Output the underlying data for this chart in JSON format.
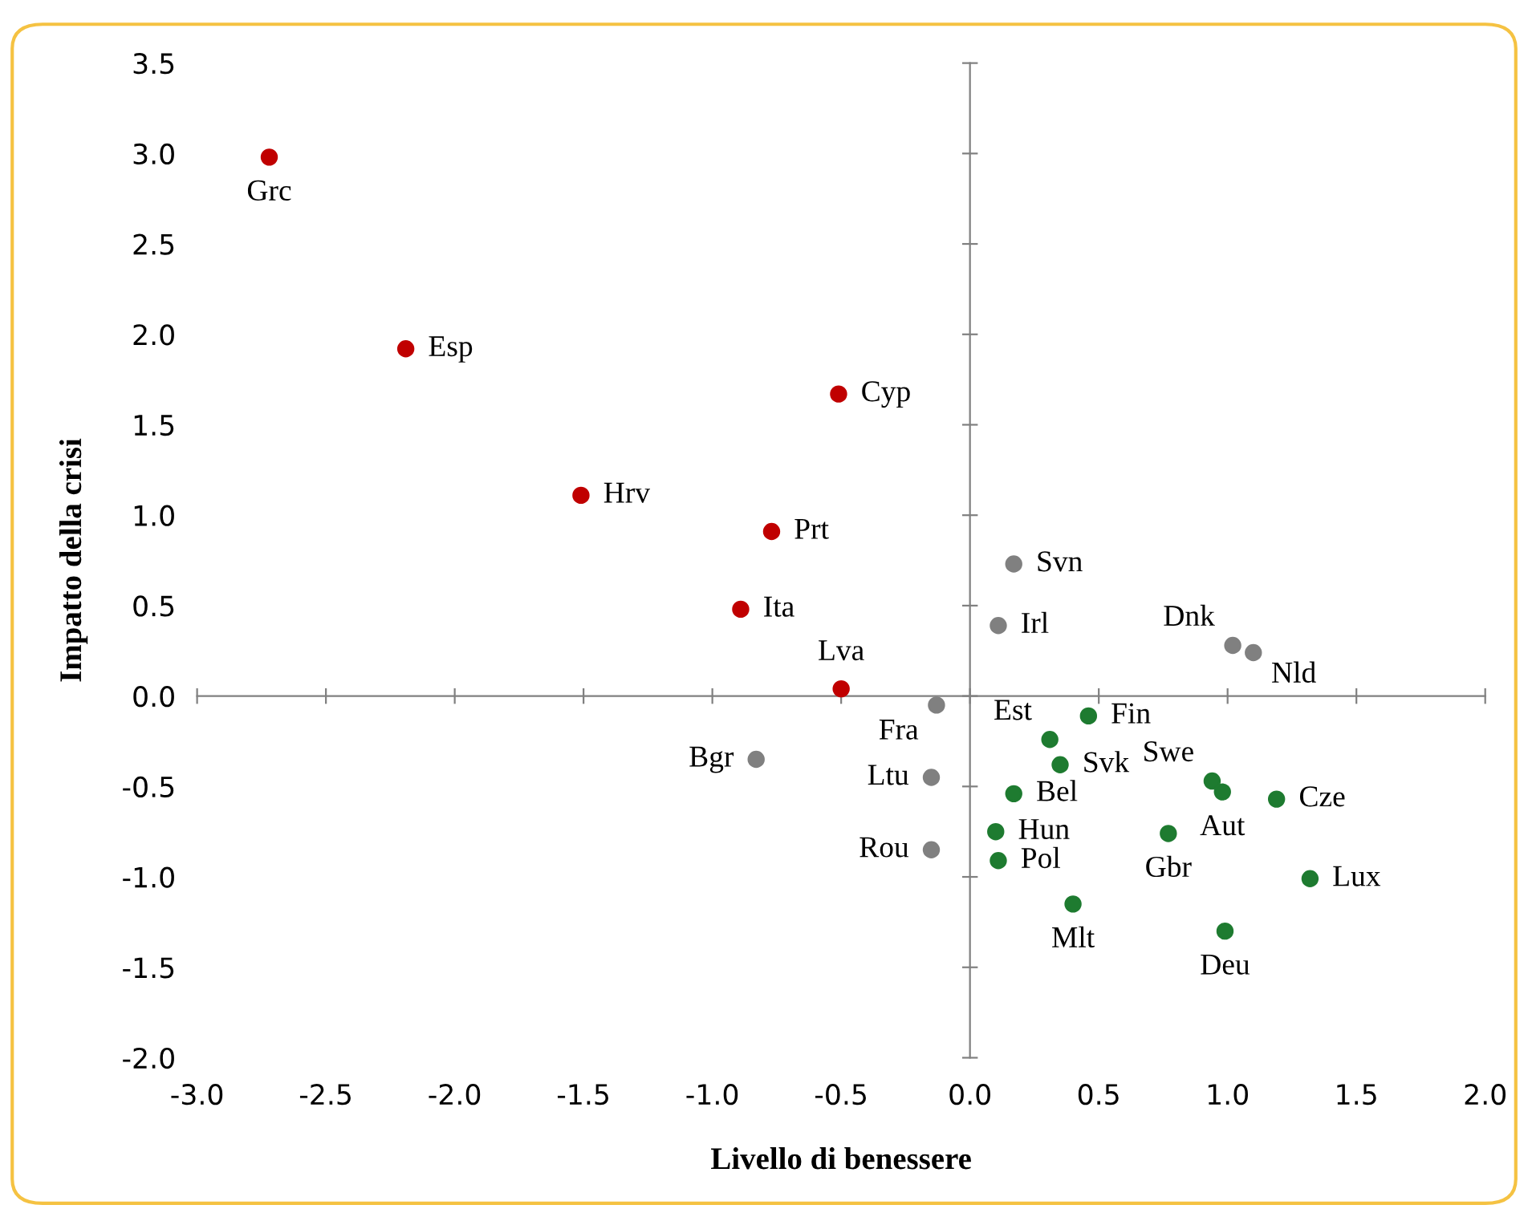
{
  "chart_data": {
    "type": "scatter",
    "xlabel": "Livello di benessere",
    "ylabel": "Impatto della crisi",
    "xlim": [
      -3.0,
      2.0
    ],
    "xticks": [
      {
        "value": -3,
        "label": "-3.0"
      },
      {
        "value": -2.5,
        "label": "-2.5"
      },
      {
        "value": -2,
        "label": "-2.0"
      },
      {
        "value": -1.5,
        "label": "-1.5"
      },
      {
        "value": -1,
        "label": "-1.0"
      },
      {
        "value": -0.5,
        "label": "-0.5"
      },
      {
        "value": 0,
        "label": "0.0"
      },
      {
        "value": 0.5,
        "label": "0.5"
      },
      {
        "value": 1,
        "label": "1.0"
      },
      {
        "value": 1.5,
        "label": "1.5"
      },
      {
        "value": 2,
        "label": "2.0"
      }
    ],
    "ylim": [
      -2.0,
      3.5
    ],
    "yticks": [
      {
        "value": -2,
        "label": "-2.0"
      },
      {
        "value": -1.5,
        "label": "-1.5"
      },
      {
        "value": -1,
        "label": "-1.0"
      },
      {
        "value": -0.5,
        "label": "-0.5"
      },
      {
        "value": 0,
        "label": "0.0"
      },
      {
        "value": 0.5,
        "label": "0.5"
      },
      {
        "value": 1,
        "label": "1.0"
      },
      {
        "value": 1.5,
        "label": "1.5"
      },
      {
        "value": 2,
        "label": "2.0"
      },
      {
        "value": 2.5,
        "label": "2.5"
      },
      {
        "value": 3,
        "label": "3.0"
      },
      {
        "value": 3.5,
        "label": "3.5"
      }
    ],
    "marker": "circle",
    "series": [
      {
        "color": "#c00000",
        "x": [
          -2.72,
          -2.19,
          -0.51,
          -1.51,
          -0.77,
          -0.89,
          -0.5
        ],
        "values": [
          2.98,
          1.92,
          1.67,
          1.11,
          0.91,
          0.48,
          0.04
        ]
      },
      {
        "color": "#808080",
        "x": [
          0.17,
          0.11,
          1.02,
          1.1,
          -0.13,
          -0.83,
          -0.15,
          -0.15
        ],
        "values": [
          0.73,
          0.39,
          0.28,
          0.24,
          -0.05,
          -0.35,
          -0.45,
          -0.85
        ]
      },
      {
        "color": "#1e7b30",
        "x": [
          0.46,
          0.31,
          0.35,
          0.17,
          0.1,
          0.11,
          0.4,
          0.77,
          0.94,
          0.98,
          1.19,
          1.32,
          0.99
        ],
        "values": [
          -0.11,
          -0.24,
          -0.38,
          -0.54,
          -0.75,
          -0.91,
          -1.15,
          -0.76,
          -0.47,
          -0.53,
          -0.57,
          -1.01,
          -1.3
        ]
      }
    ],
    "annotations": [
      {
        "text": "Grc",
        "x": -2.72,
        "y": 2.98
      },
      {
        "text": "Esp",
        "x": -2.19,
        "y": 1.92
      },
      {
        "text": "Cyp",
        "x": -0.51,
        "y": 1.67
      },
      {
        "text": "Hrv",
        "x": -1.51,
        "y": 1.11
      },
      {
        "text": "Prt",
        "x": -0.77,
        "y": 0.91
      },
      {
        "text": "Ita",
        "x": -0.89,
        "y": 0.48
      },
      {
        "text": "Lva",
        "x": -0.5,
        "y": 0.04
      },
      {
        "text": "Svn",
        "x": 0.17,
        "y": 0.73
      },
      {
        "text": "Irl",
        "x": 0.11,
        "y": 0.39
      },
      {
        "text": "Dnk",
        "x": 1.02,
        "y": 0.28
      },
      {
        "text": "Nld",
        "x": 1.1,
        "y": 0.24
      },
      {
        "text": "Fra",
        "x": -0.13,
        "y": -0.05
      },
      {
        "text": "Bgr",
        "x": -0.83,
        "y": -0.35
      },
      {
        "text": "Ltu",
        "x": -0.15,
        "y": -0.45
      },
      {
        "text": "Rou",
        "x": -0.15,
        "y": -0.85
      },
      {
        "text": "Fin",
        "x": 0.46,
        "y": -0.11
      },
      {
        "text": "Est",
        "x": 0.31,
        "y": -0.24
      },
      {
        "text": "Svk",
        "x": 0.35,
        "y": -0.38
      },
      {
        "text": "Bel",
        "x": 0.17,
        "y": -0.54
      },
      {
        "text": "Hun",
        "x": 0.1,
        "y": -0.75
      },
      {
        "text": "Pol",
        "x": 0.11,
        "y": -0.91
      },
      {
        "text": "Mlt",
        "x": 0.4,
        "y": -1.15
      },
      {
        "text": "Gbr",
        "x": 0.77,
        "y": -0.76
      },
      {
        "text": "Swe",
        "x": 0.94,
        "y": -0.47
      },
      {
        "text": "Aut",
        "x": 0.98,
        "y": -0.53
      },
      {
        "text": "Cze",
        "x": 1.19,
        "y": -0.57
      },
      {
        "text": "Lux",
        "x": 1.32,
        "y": -1.01
      },
      {
        "text": "Deu",
        "x": 0.99,
        "y": -1.3
      }
    ]
  }
}
